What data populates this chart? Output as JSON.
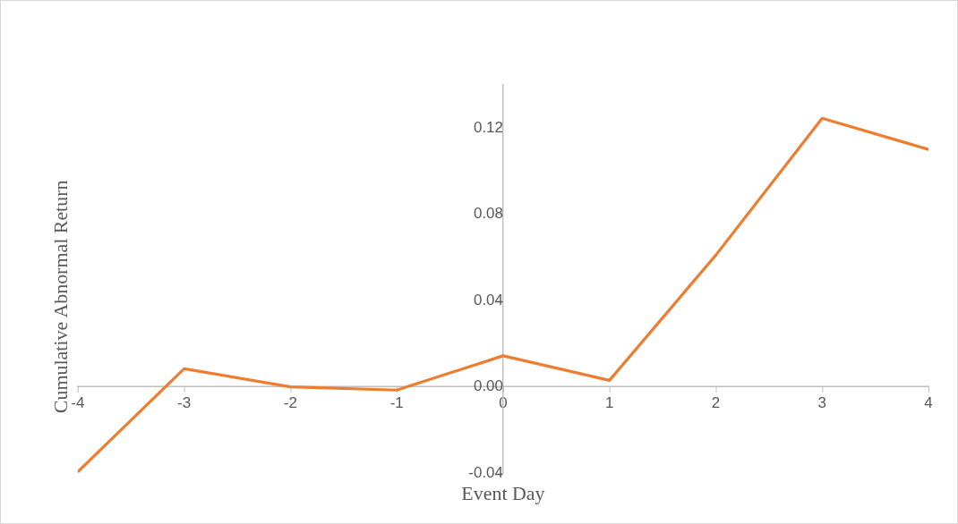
{
  "chart_data": {
    "type": "line",
    "xlabel": "Event Day",
    "ylabel": "Cumulative Abnormal Return",
    "x": [
      -4,
      -3,
      -2,
      -1,
      0,
      1,
      2,
      3,
      4
    ],
    "series": [
      {
        "color": "#ed7d31",
        "values": [
          -0.0394,
          0.0084,
          0.0,
          -0.0015,
          0.0144,
          0.003,
          0.061,
          0.1244,
          0.11
        ]
      }
    ],
    "xlim": [
      -4,
      4
    ],
    "xticks": [
      -4,
      -3,
      -2,
      -1,
      0,
      1,
      2,
      3,
      4
    ],
    "ylim": [
      -0.04,
      0.14
    ],
    "yticks": [
      {
        "value": -0.04,
        "label": "-0.04"
      },
      {
        "value": 0,
        "label": "0.00"
      },
      {
        "value": 0.04,
        "label": "0.04"
      },
      {
        "value": 0.08,
        "label": "0.08"
      },
      {
        "value": 0.12,
        "label": "0.12"
      }
    ],
    "grid": false,
    "legend": false,
    "marker": "none",
    "line_style": "solid"
  }
}
